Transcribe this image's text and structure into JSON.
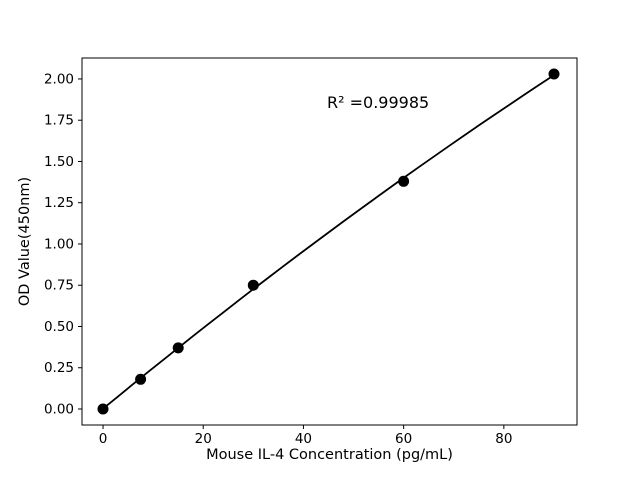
{
  "chart_data": {
    "type": "scatter",
    "title": "",
    "xlabel": "Mouse IL-4 Concentration (pg/mL)",
    "ylabel": "OD Value(450nm)",
    "annotation": "R² =0.99985",
    "x": [
      0,
      7.5,
      15,
      30,
      60,
      90
    ],
    "y": [
      0.0,
      0.18,
      0.37,
      0.75,
      1.38,
      2.03
    ],
    "xticks": [
      0,
      20,
      40,
      60,
      80
    ],
    "yticks": [
      "0.00",
      "0.25",
      "0.50",
      "0.75",
      "1.00",
      "1.25",
      "1.50",
      "1.75",
      "2.00"
    ],
    "xlim": [
      -4.2,
      94.6
    ],
    "ylim": [
      -0.097,
      2.127
    ],
    "grid": false,
    "legend": "none",
    "marker_color": "#000000",
    "line_color": "#000000",
    "background": "#ffffff",
    "fit": {
      "type": "quadratic",
      "coefficients": {
        "a": 0.0017,
        "b": 0.02501,
        "c": -2.83e-05
      },
      "x_range": [
        0,
        90
      ],
      "r_squared": 0.99985
    }
  }
}
